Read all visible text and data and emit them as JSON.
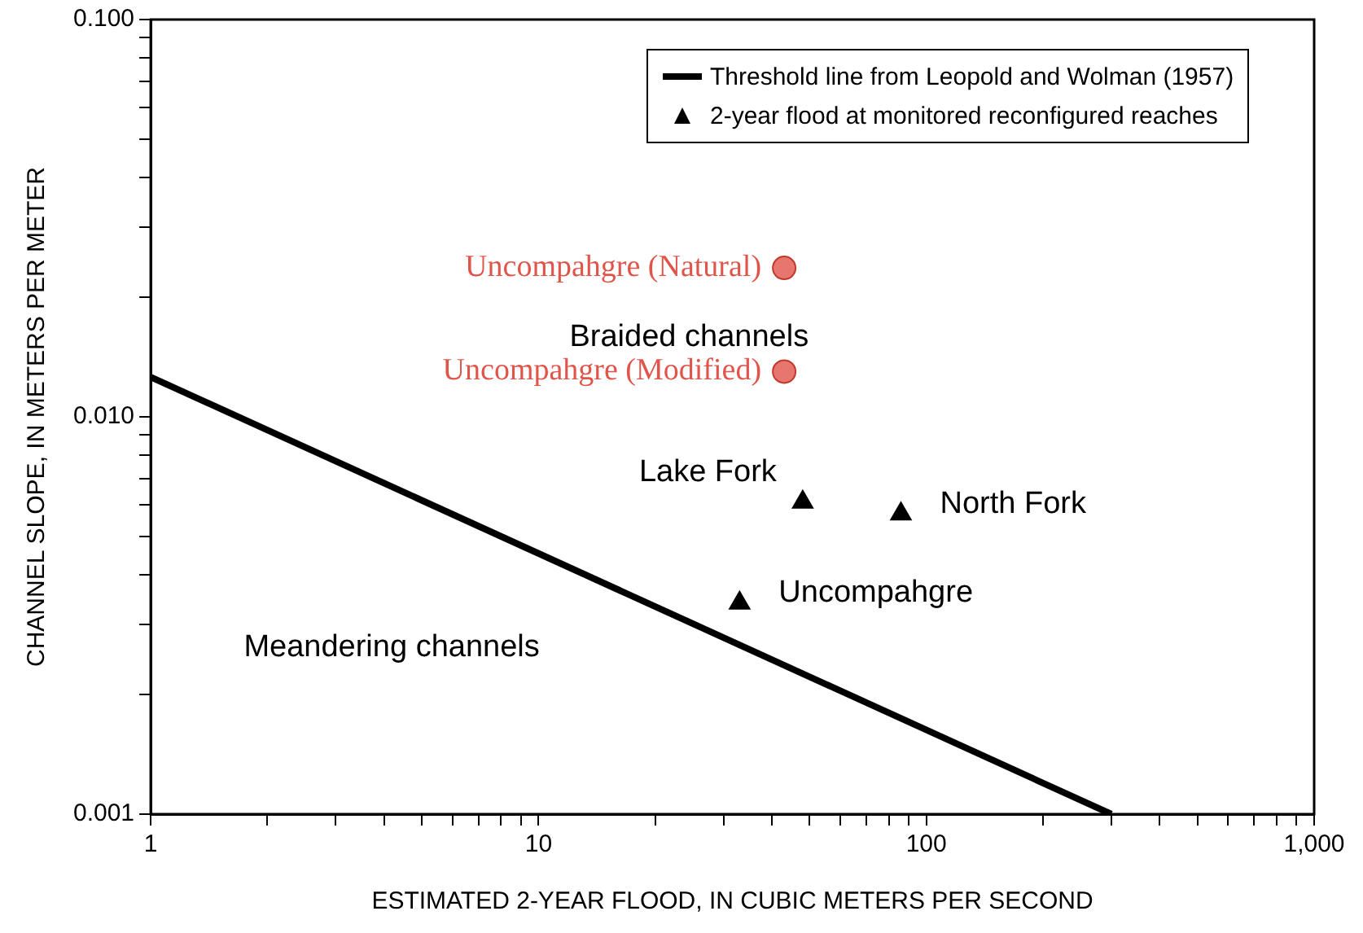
{
  "chart_data": {
    "type": "scatter",
    "xlabel": "ESTIMATED 2-YEAR FLOOD, IN CUBIC METERS PER SECOND",
    "ylabel": "CHANNEL SLOPE, IN METERS PER METER",
    "log": "xy",
    "legend": "top right",
    "xlim": [
      1,
      1000
    ],
    "ylim": [
      0.001,
      0.1
    ],
    "xticks": [
      1,
      {
        "value": 2,
        "label": null
      },
      {
        "value": 3,
        "label": null
      },
      {
        "value": 4,
        "label": null
      },
      {
        "value": 5,
        "label": null
      },
      {
        "value": 6,
        "label": null
      },
      {
        "value": 7,
        "label": null
      },
      {
        "value": 8,
        "label": null
      },
      {
        "value": 9,
        "label": null
      },
      10,
      {
        "value": 20,
        "label": null
      },
      {
        "value": 30,
        "label": null
      },
      {
        "value": 40,
        "label": null
      },
      {
        "value": 50,
        "label": null
      },
      {
        "value": 60,
        "label": null
      },
      {
        "value": 70,
        "label": null
      },
      {
        "value": 80,
        "label": null
      },
      {
        "value": 90,
        "label": null
      },
      100,
      {
        "value": 200,
        "label": null
      },
      {
        "value": 300,
        "label": null
      },
      {
        "value": 400,
        "label": null
      },
      {
        "value": 500,
        "label": null
      },
      {
        "value": 600,
        "label": null
      },
      {
        "value": 700,
        "label": null
      },
      {
        "value": 800,
        "label": null
      },
      {
        "value": 900,
        "label": null
      },
      {
        "value": 1000,
        "label": "1,000"
      }
    ],
    "yticks": [
      {
        "value": 0.001,
        "label": "0.001"
      },
      {
        "value": 0.002,
        "label": null
      },
      {
        "value": 0.003,
        "label": null
      },
      {
        "value": 0.004,
        "label": null
      },
      {
        "value": 0.005,
        "label": null
      },
      {
        "value": 0.006,
        "label": null
      },
      {
        "value": 0.007,
        "label": null
      },
      {
        "value": 0.008,
        "label": null
      },
      {
        "value": 0.009,
        "label": null
      },
      {
        "value": 0.01,
        "label": "0.010"
      },
      {
        "value": 0.02,
        "label": null
      },
      {
        "value": 0.03,
        "label": null
      },
      {
        "value": 0.04,
        "label": null
      },
      {
        "value": 0.05,
        "label": null
      },
      {
        "value": 0.06,
        "label": null
      },
      {
        "value": 0.07,
        "label": null
      },
      {
        "value": 0.08,
        "label": null
      },
      {
        "value": 0.09,
        "label": null
      },
      {
        "value": 0.1,
        "label": "0.100"
      }
    ],
    "annotations": [
      "Braided channels",
      "Meandering channels"
    ],
    "series": [
      {
        "name": "Threshold line from Leopold and Wolman (1957)",
        "type": "line",
        "color": "#000000",
        "marker": "none",
        "line_style": "solid",
        "x": [
          1,
          300
        ],
        "values": [
          0.0126,
          0.001
        ]
      },
      {
        "name": "2-year flood at monitored reconfigured reaches",
        "color": "#000000",
        "marker": "triangle",
        "x": [
          48,
          86,
          33
        ],
        "values": [
          0.0061,
          0.0057,
          0.0034
        ],
        "value_labels": [
          "Lake Fork",
          "North Fork",
          "Uncompahgre"
        ]
      },
      {
        "color": "#e0544a",
        "marker": "circle",
        "x": [
          43,
          43
        ],
        "values": [
          0.0237,
          0.013
        ],
        "value_labels": [
          "Uncompahgre (Natural)",
          "Uncompahgre (Modified)"
        ]
      }
    ]
  }
}
